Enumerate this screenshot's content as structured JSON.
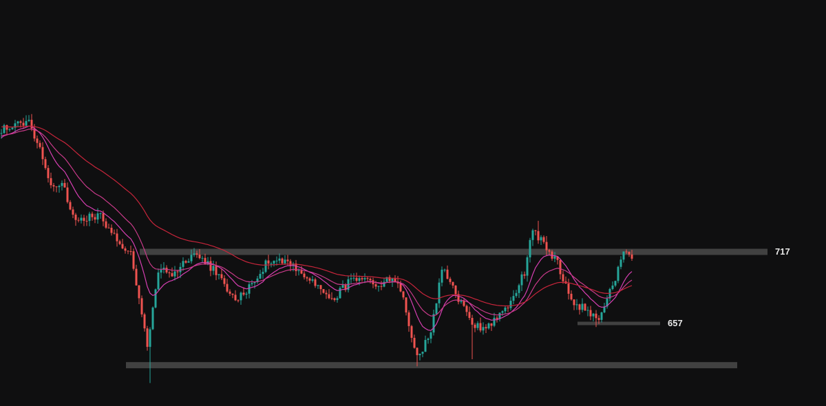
{
  "chart_data": {
    "type": "candlestick",
    "ylim": [
      595,
      740
    ],
    "x_range": [
      0,
      300
    ],
    "grid": false,
    "legend": "none",
    "colors": {
      "background": "#0f0f10",
      "bull": "#26a69a",
      "bear": "#ef5350",
      "zone": "#4a4a4a",
      "ema_fast": "#d63fb2",
      "ema_mid": "#c93a8a",
      "ema_slow": "#c8253b"
    },
    "horizontal_levels": [
      {
        "value": 717,
        "label": "717",
        "x_from": 51,
        "x_to": 279
      },
      {
        "value": 657,
        "label": "657",
        "x_from": 210,
        "x_to": 240
      },
      {
        "value": 622,
        "label": "",
        "x_from": 46,
        "x_to": 268
      }
    ],
    "price_keypoints": [
      [
        0,
        820
      ],
      [
        10,
        826
      ],
      [
        14,
        805
      ],
      [
        18,
        772
      ],
      [
        22,
        775
      ],
      [
        26,
        745
      ],
      [
        36,
        747
      ],
      [
        42,
        728
      ],
      [
        47,
        715
      ],
      [
        53,
        637
      ],
      [
        57,
        702
      ],
      [
        62,
        698
      ],
      [
        70,
        716
      ],
      [
        78,
        700
      ],
      [
        85,
        675
      ],
      [
        92,
        693
      ],
      [
        97,
        710
      ],
      [
        103,
        711
      ],
      [
        110,
        697
      ],
      [
        120,
        677
      ],
      [
        127,
        693
      ],
      [
        137,
        690
      ],
      [
        143,
        695
      ],
      [
        146,
        678
      ],
      [
        151,
        627
      ],
      [
        156,
        650
      ],
      [
        160,
        703
      ],
      [
        166,
        677
      ],
      [
        172,
        655
      ],
      [
        176,
        654
      ],
      [
        180,
        662
      ],
      [
        185,
        674
      ],
      [
        190,
        700
      ],
      [
        193,
        738
      ],
      [
        197,
        722
      ],
      [
        202,
        708
      ],
      [
        207,
        675
      ],
      [
        212,
        669
      ],
      [
        217,
        659
      ],
      [
        223,
        695
      ],
      [
        226,
        716
      ],
      [
        229,
        711
      ]
    ],
    "ema_start_values": [
      812,
      814,
      822
    ]
  }
}
